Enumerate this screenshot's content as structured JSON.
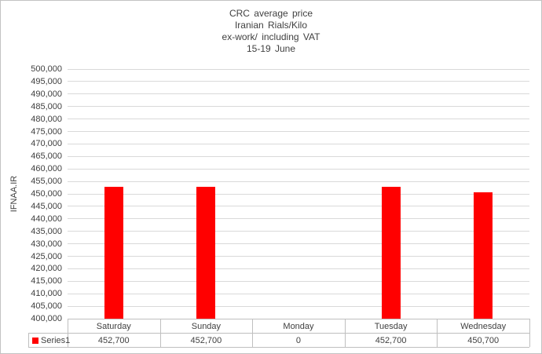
{
  "title": {
    "lines": [
      "CRC average price",
      "Iranian Rials/Kilo",
      "ex-work/ including VAT",
      "15-19 June"
    ]
  },
  "chart_data": {
    "type": "bar",
    "title": "CRC average price | Iranian Rials/Kilo | ex-work/ including VAT | 15-19 June",
    "categories": [
      "Saturday",
      "Sunday",
      "Monday",
      "Tuesday",
      "Wednesday"
    ],
    "series": [
      {
        "name": "Series1",
        "color": "#FF0000",
        "values": [
          452700,
          452700,
          0,
          452700,
          450700
        ],
        "value_labels": [
          "452,700",
          "452,700",
          "0",
          "452,700",
          "450,700"
        ]
      }
    ],
    "xlabel": "",
    "ylabel": "IFNAA.IR",
    "ylim": [
      400000,
      500000
    ],
    "ytick_step": 5000,
    "ytick_labels": [
      "500,000",
      "495,000",
      "490,000",
      "485,000",
      "480,000",
      "475,000",
      "470,000",
      "465,000",
      "460,000",
      "455,000",
      "450,000",
      "445,000",
      "440,000",
      "435,000",
      "430,000",
      "425,000",
      "420,000",
      "415,000",
      "410,000",
      "405,000",
      "400,000"
    ],
    "grid": true,
    "legend": {
      "label": "Series1",
      "position": "bottom-left-of-data-table",
      "marker_color": "#FF0000"
    },
    "data_table_shown": true
  },
  "colors": {
    "bar": "#FF0000",
    "gridline": "#D9D9D9",
    "table_border": "#BFBFBF",
    "text": "#404040",
    "background": "#FFFFFF",
    "outer_border": "#C3C3C3"
  }
}
